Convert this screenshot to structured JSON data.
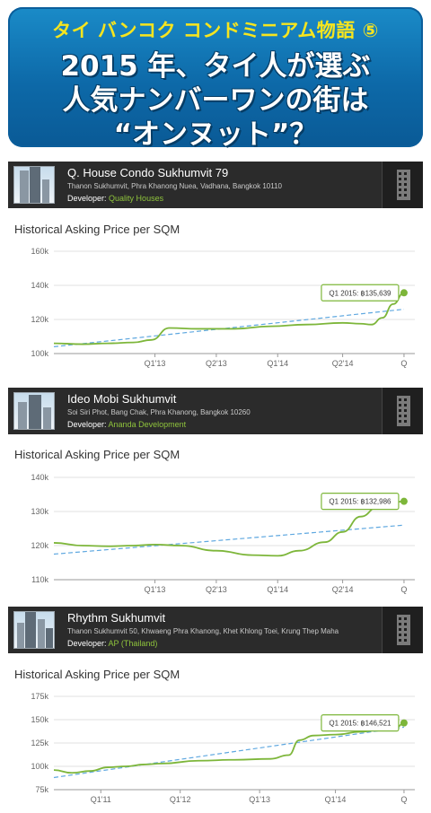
{
  "banner": {
    "subtitle": "タイ バンコク コンドミニアム物語 ⑤",
    "title_line1": "2015 年、タイ人が選ぶ",
    "title_line2": "人気ナンバーワンの街は",
    "title_line3": "“オンヌット”？"
  },
  "colors": {
    "banner_bg": "#1077b8",
    "banner_subtitle": "#f7e51e",
    "header_bg": "#2b2b2b",
    "developer_text": "#8fc43c",
    "line": "#7db63a",
    "trend": "#5fa8e0"
  },
  "condos": [
    {
      "name": "Q. House Condo Sukhumvit 79",
      "address": "Thanon Sukhumvit, Phra Khanong Nuea, Vadhana, Bangkok 10110",
      "developer_label": "Developer:",
      "developer": "Quality Houses",
      "icon": "building-icon"
    },
    {
      "name": "Ideo Mobi Sukhumvit",
      "address": "Soi Siri Phot, Bang Chak, Phra Khanong, Bangkok 10260",
      "developer_label": "Developer:",
      "developer": "Ananda Development",
      "icon": "building-icon"
    },
    {
      "name": "Rhythm Sukhumvit",
      "address": "Thanon Sukhumvit 50, Khwaeng Phra Khanong, Khet Khlong Toei, Krung Thep Maha",
      "developer_label": "Developer:",
      "developer": "AP (Thailand)",
      "icon": "building-icon"
    }
  ],
  "chart_data": [
    {
      "type": "line",
      "title": "Historical Asking Price per SQM",
      "y_ticks": [
        "160k",
        "140k",
        "120k",
        "100k"
      ],
      "ylim": [
        100000,
        160000
      ],
      "x_ticks": [
        "Q1'13",
        "Q2'13",
        "Q1'14",
        "Q2'14",
        "Q"
      ],
      "xlim": [
        0,
        100
      ],
      "x_tick_pos": [
        28,
        45,
        62,
        80,
        97
      ],
      "callout": "Q1 2015: ฿135,639",
      "series": [
        {
          "x": [
            0,
            8,
            15,
            22,
            27,
            32,
            40,
            50,
            60,
            70,
            80,
            85,
            88,
            91,
            94,
            97
          ],
          "y": [
            106000,
            105500,
            106000,
            106500,
            108000,
            115000,
            114500,
            114500,
            116000,
            117000,
            118000,
            117500,
            117000,
            121000,
            129000,
            135639
          ]
        }
      ],
      "trend": {
        "x": [
          0,
          97
        ],
        "y": [
          104000,
          126000
        ]
      }
    },
    {
      "type": "line",
      "title": "Historical Asking Price per SQM",
      "y_ticks": [
        "140k",
        "130k",
        "120k",
        "110k"
      ],
      "ylim": [
        110000,
        140000
      ],
      "x_ticks": [
        "Q1'13",
        "Q2'13",
        "Q1'14",
        "Q2'14",
        "Q"
      ],
      "xlim": [
        0,
        100
      ],
      "x_tick_pos": [
        28,
        45,
        62,
        80,
        97
      ],
      "callout": "Q1 2015: ฿132,986",
      "series": [
        {
          "x": [
            0,
            8,
            15,
            22,
            28,
            35,
            45,
            55,
            62,
            68,
            75,
            80,
            85,
            90,
            95,
            97
          ],
          "y": [
            120800,
            120000,
            119800,
            120000,
            120300,
            120000,
            118500,
            117200,
            117000,
            118500,
            121000,
            124000,
            128500,
            131500,
            132800,
            132986
          ]
        }
      ],
      "trend": {
        "x": [
          0,
          97
        ],
        "y": [
          117500,
          126000
        ]
      }
    },
    {
      "type": "line",
      "title": "Historical Asking Price per SQM",
      "y_ticks": [
        "175k",
        "150k",
        "125k",
        "100k",
        "75k"
      ],
      "ylim": [
        75000,
        175000
      ],
      "x_ticks": [
        "Q1'11",
        "Q1'12",
        "Q1'13",
        "Q1'14",
        "Q"
      ],
      "xlim": [
        0,
        100
      ],
      "x_tick_pos": [
        13,
        35,
        57,
        78,
        97
      ],
      "callout": "Q1 2015: ฿146,521",
      "series": [
        {
          "x": [
            0,
            5,
            10,
            15,
            20,
            25,
            30,
            40,
            50,
            60,
            65,
            68,
            72,
            78,
            85,
            90,
            95,
            97
          ],
          "y": [
            96000,
            93000,
            95000,
            99000,
            100000,
            102000,
            103000,
            106000,
            107000,
            108000,
            112000,
            128000,
            133000,
            134000,
            137000,
            139000,
            142000,
            146521
          ]
        }
      ],
      "trend": {
        "x": [
          0,
          97
        ],
        "y": [
          88000,
          142000
        ]
      }
    }
  ]
}
